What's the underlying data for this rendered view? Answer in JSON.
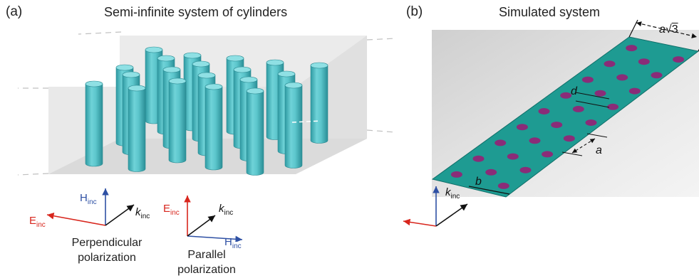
{
  "panel_a": {
    "label": "(a)",
    "title": "Semi-infinite system of cylinders",
    "axes_perpendicular": {
      "h": "H",
      "h_sub": "inc",
      "e": "E",
      "e_sub": "inc",
      "k": "k",
      "k_sub": "inc",
      "caption_line1": "Perpendicular",
      "caption_line2": "polarization"
    },
    "axes_parallel": {
      "e": "E",
      "e_sub": "inc",
      "k": "k",
      "k_sub": "inc",
      "h": "H",
      "h_sub": "inc",
      "caption_line1": "Parallel",
      "caption_line2": "polarization"
    }
  },
  "panel_b": {
    "label": "(b)",
    "title": "Simulated system",
    "dim_width": "a",
    "dim_width_root": "3",
    "dim_d": "d",
    "dim_a": "a",
    "dim_b": "b",
    "k": "k",
    "k_sub": "inc"
  },
  "colors": {
    "cylinder": "#5cc6cc",
    "slab_plate": "#1e9b92",
    "hole": "#8a2c78",
    "e_field": "#d8261d",
    "h_field": "#2e50a4",
    "k_vector": "#111111"
  }
}
